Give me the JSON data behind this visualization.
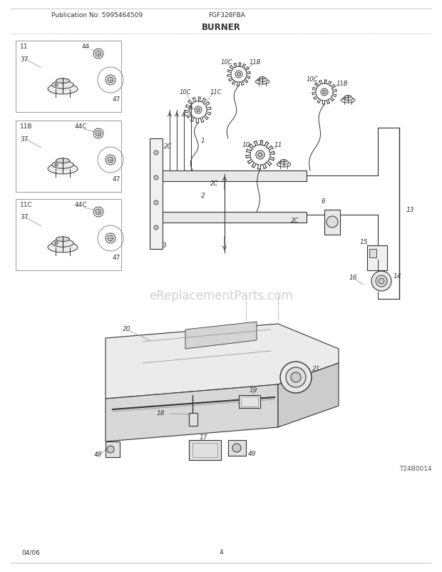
{
  "title": "BURNER",
  "pub_no": "Publication No: 5995464509",
  "model": "FGF328FBA",
  "date": "04/06",
  "page": "4",
  "watermark": "eReplacementParts.com",
  "diagram_id": "T24B0014",
  "bg_color": "#ffffff",
  "line_color": "#333333",
  "gray": "#888888",
  "lgray": "#aaaaaa",
  "dashed_color": "#999999"
}
